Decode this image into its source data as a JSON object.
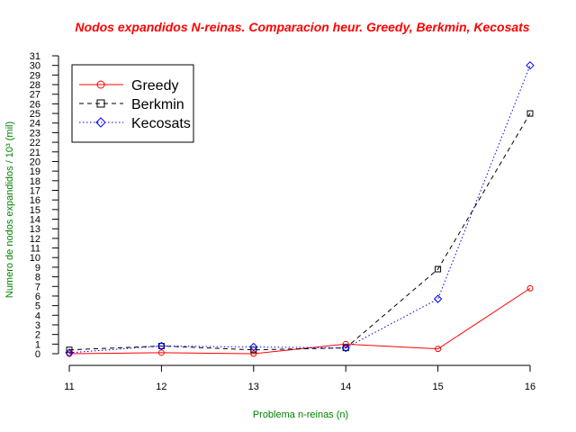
{
  "chart_data": {
    "type": "line",
    "title": "Nodos expandidos N-reinas. Comparacion heur. Greedy, Berkmin, Kecosats",
    "xlabel": "Problema n-reinas (n)",
    "ylabel": "Numero de nodos expandidos / 10³ (mil)",
    "x": [
      11,
      12,
      13,
      14,
      15,
      16
    ],
    "xlim": [
      11,
      16
    ],
    "ylim": [
      0,
      31
    ],
    "x_ticks": [
      "11",
      "12",
      "13",
      "14",
      "15",
      "16"
    ],
    "y_ticks": [
      "0",
      "1",
      "2",
      "3",
      "4",
      "5",
      "6",
      "7",
      "8",
      "9",
      "10",
      "11",
      "12",
      "13",
      "14",
      "15",
      "16",
      "17",
      "18",
      "19",
      "20",
      "21",
      "22",
      "23",
      "24",
      "25",
      "26",
      "27",
      "28",
      "29",
      "30",
      "31"
    ],
    "grid": false,
    "legend_position": "top-left",
    "series": [
      {
        "name": "Greedy",
        "color": "#ff0000",
        "line": "solid",
        "marker": "circle",
        "values": [
          0.0,
          0.1,
          0.0,
          1.0,
          0.5,
          6.8
        ]
      },
      {
        "name": "Berkmin",
        "color": "#000000",
        "line": "dashed",
        "marker": "square",
        "values": [
          0.4,
          0.8,
          0.4,
          0.6,
          8.8,
          25.0
        ]
      },
      {
        "name": "Kecosats",
        "color": "#0000ff",
        "line": "dotted",
        "marker": "diamond",
        "values": [
          0.1,
          0.8,
          0.7,
          0.6,
          5.7,
          30.0
        ]
      }
    ]
  }
}
